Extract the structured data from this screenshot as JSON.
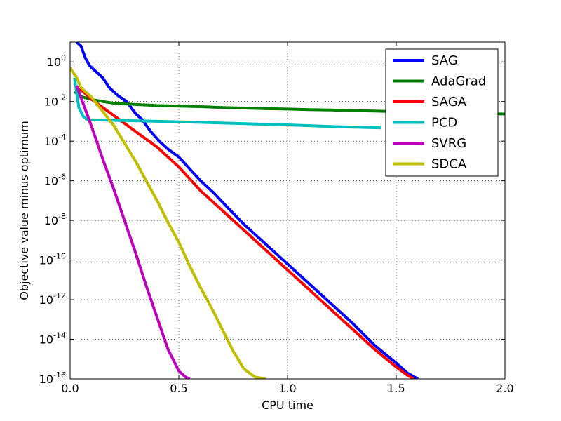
{
  "chart_data": {
    "type": "line",
    "xlabel": "CPU time",
    "ylabel": "Objective value minus optimum",
    "yscale": "log",
    "xlim": [
      0.0,
      2.0
    ],
    "ylim": [
      1e-16,
      10
    ],
    "grid": true,
    "legend_position": "top-right",
    "x_ticks": [
      {
        "value": 0.0,
        "label": "0.0"
      },
      {
        "value": 0.5,
        "label": "0.5"
      },
      {
        "value": 1.0,
        "label": "1.0"
      },
      {
        "value": 1.5,
        "label": "1.5"
      },
      {
        "value": 2.0,
        "label": "2.0"
      }
    ],
    "y_ticks": [
      {
        "exp": 0,
        "base": "10",
        "sup": "0"
      },
      {
        "exp": -2,
        "base": "10",
        "sup": "-2"
      },
      {
        "exp": -4,
        "base": "10",
        "sup": "-4"
      },
      {
        "exp": -6,
        "base": "10",
        "sup": "-6"
      },
      {
        "exp": -8,
        "base": "10",
        "sup": "-8"
      },
      {
        "exp": -10,
        "base": "10",
        "sup": "-10"
      },
      {
        "exp": -12,
        "base": "10",
        "sup": "-12"
      },
      {
        "exp": -14,
        "base": "10",
        "sup": "-14"
      },
      {
        "exp": -16,
        "base": "10",
        "sup": "-16"
      }
    ],
    "series": [
      {
        "name": "SAG",
        "color": "#0000ff",
        "x": [
          0.03,
          0.05,
          0.07,
          0.09,
          0.12,
          0.15,
          0.18,
          0.22,
          0.26,
          0.3,
          0.33,
          0.37,
          0.41,
          0.45,
          0.5,
          0.55,
          0.6,
          0.66,
          0.72,
          0.8,
          0.9,
          1.0,
          1.1,
          1.2,
          1.3,
          1.4,
          1.5,
          1.55,
          1.6
        ],
        "y_exp": [
          1.0,
          0.8,
          0.2,
          -0.2,
          -0.5,
          -0.8,
          -1.3,
          -1.7,
          -2.0,
          -2.6,
          -2.9,
          -3.5,
          -4.0,
          -4.4,
          -4.8,
          -5.4,
          -6.0,
          -6.6,
          -7.3,
          -8.2,
          -9.2,
          -10.2,
          -11.2,
          -12.2,
          -13.2,
          -14.3,
          -15.2,
          -15.7,
          -16.0
        ]
      },
      {
        "name": "AdaGrad",
        "color": "#008000",
        "x": [
          0.02,
          0.05,
          0.1,
          0.15,
          0.2,
          0.3,
          0.4,
          0.5,
          0.6,
          0.7,
          0.8,
          0.9,
          1.0,
          1.1,
          1.2,
          1.3,
          1.4,
          1.5,
          1.6,
          1.7,
          1.8,
          1.9,
          2.0
        ],
        "y_exp": [
          -1.5,
          -1.75,
          -1.9,
          -2.0,
          -2.08,
          -2.15,
          -2.2,
          -2.23,
          -2.26,
          -2.3,
          -2.33,
          -2.36,
          -2.38,
          -2.41,
          -2.43,
          -2.46,
          -2.48,
          -2.51,
          -2.53,
          -2.56,
          -2.58,
          -2.61,
          -2.63
        ]
      },
      {
        "name": "SAGA",
        "color": "#ff0000",
        "x": [
          0.03,
          0.06,
          0.1,
          0.15,
          0.2,
          0.25,
          0.3,
          0.35,
          0.4,
          0.45,
          0.5,
          0.55,
          0.6,
          0.66,
          0.72,
          0.8,
          0.9,
          1.0,
          1.1,
          1.2,
          1.3,
          1.4,
          1.5,
          1.55,
          1.58
        ],
        "y_exp": [
          -1.3,
          -1.5,
          -1.9,
          -2.3,
          -2.7,
          -3.1,
          -3.5,
          -3.9,
          -4.3,
          -4.8,
          -5.3,
          -5.9,
          -6.5,
          -7.1,
          -7.7,
          -8.5,
          -9.5,
          -10.5,
          -11.5,
          -12.5,
          -13.5,
          -14.5,
          -15.4,
          -15.8,
          -16.0
        ]
      },
      {
        "name": "PCD",
        "color": "#00bfbf",
        "x": [
          0.02,
          0.04,
          0.06,
          0.08,
          0.2,
          0.4,
          0.6,
          0.8,
          1.0,
          1.2,
          1.43
        ],
        "y_exp": [
          -0.8,
          -2.3,
          -2.75,
          -2.92,
          -2.95,
          -3.0,
          -3.05,
          -3.12,
          -3.18,
          -3.26,
          -3.33
        ]
      },
      {
        "name": "SVRG",
        "color": "#bf00bf",
        "x": [
          0.03,
          0.05,
          0.1,
          0.15,
          0.2,
          0.25,
          0.3,
          0.35,
          0.4,
          0.45,
          0.5,
          0.53,
          0.55
        ],
        "y_exp": [
          -1.2,
          -1.8,
          -3.3,
          -4.9,
          -6.4,
          -8.0,
          -9.6,
          -11.3,
          -12.9,
          -14.5,
          -15.6,
          -15.9,
          -16.0
        ]
      },
      {
        "name": "SDCA",
        "color": "#bfbf00",
        "x": [
          0.0,
          0.03,
          0.05,
          0.1,
          0.15,
          0.2,
          0.25,
          0.3,
          0.35,
          0.4,
          0.45,
          0.5,
          0.55,
          0.6,
          0.65,
          0.7,
          0.75,
          0.8,
          0.85,
          0.9
        ],
        "y_exp": [
          -0.3,
          -0.8,
          -1.3,
          -1.8,
          -2.5,
          -3.2,
          -4.1,
          -5.0,
          -6.0,
          -7.0,
          -8.1,
          -9.1,
          -10.3,
          -11.4,
          -12.4,
          -13.5,
          -14.6,
          -15.5,
          -15.9,
          -16.0
        ]
      }
    ]
  }
}
